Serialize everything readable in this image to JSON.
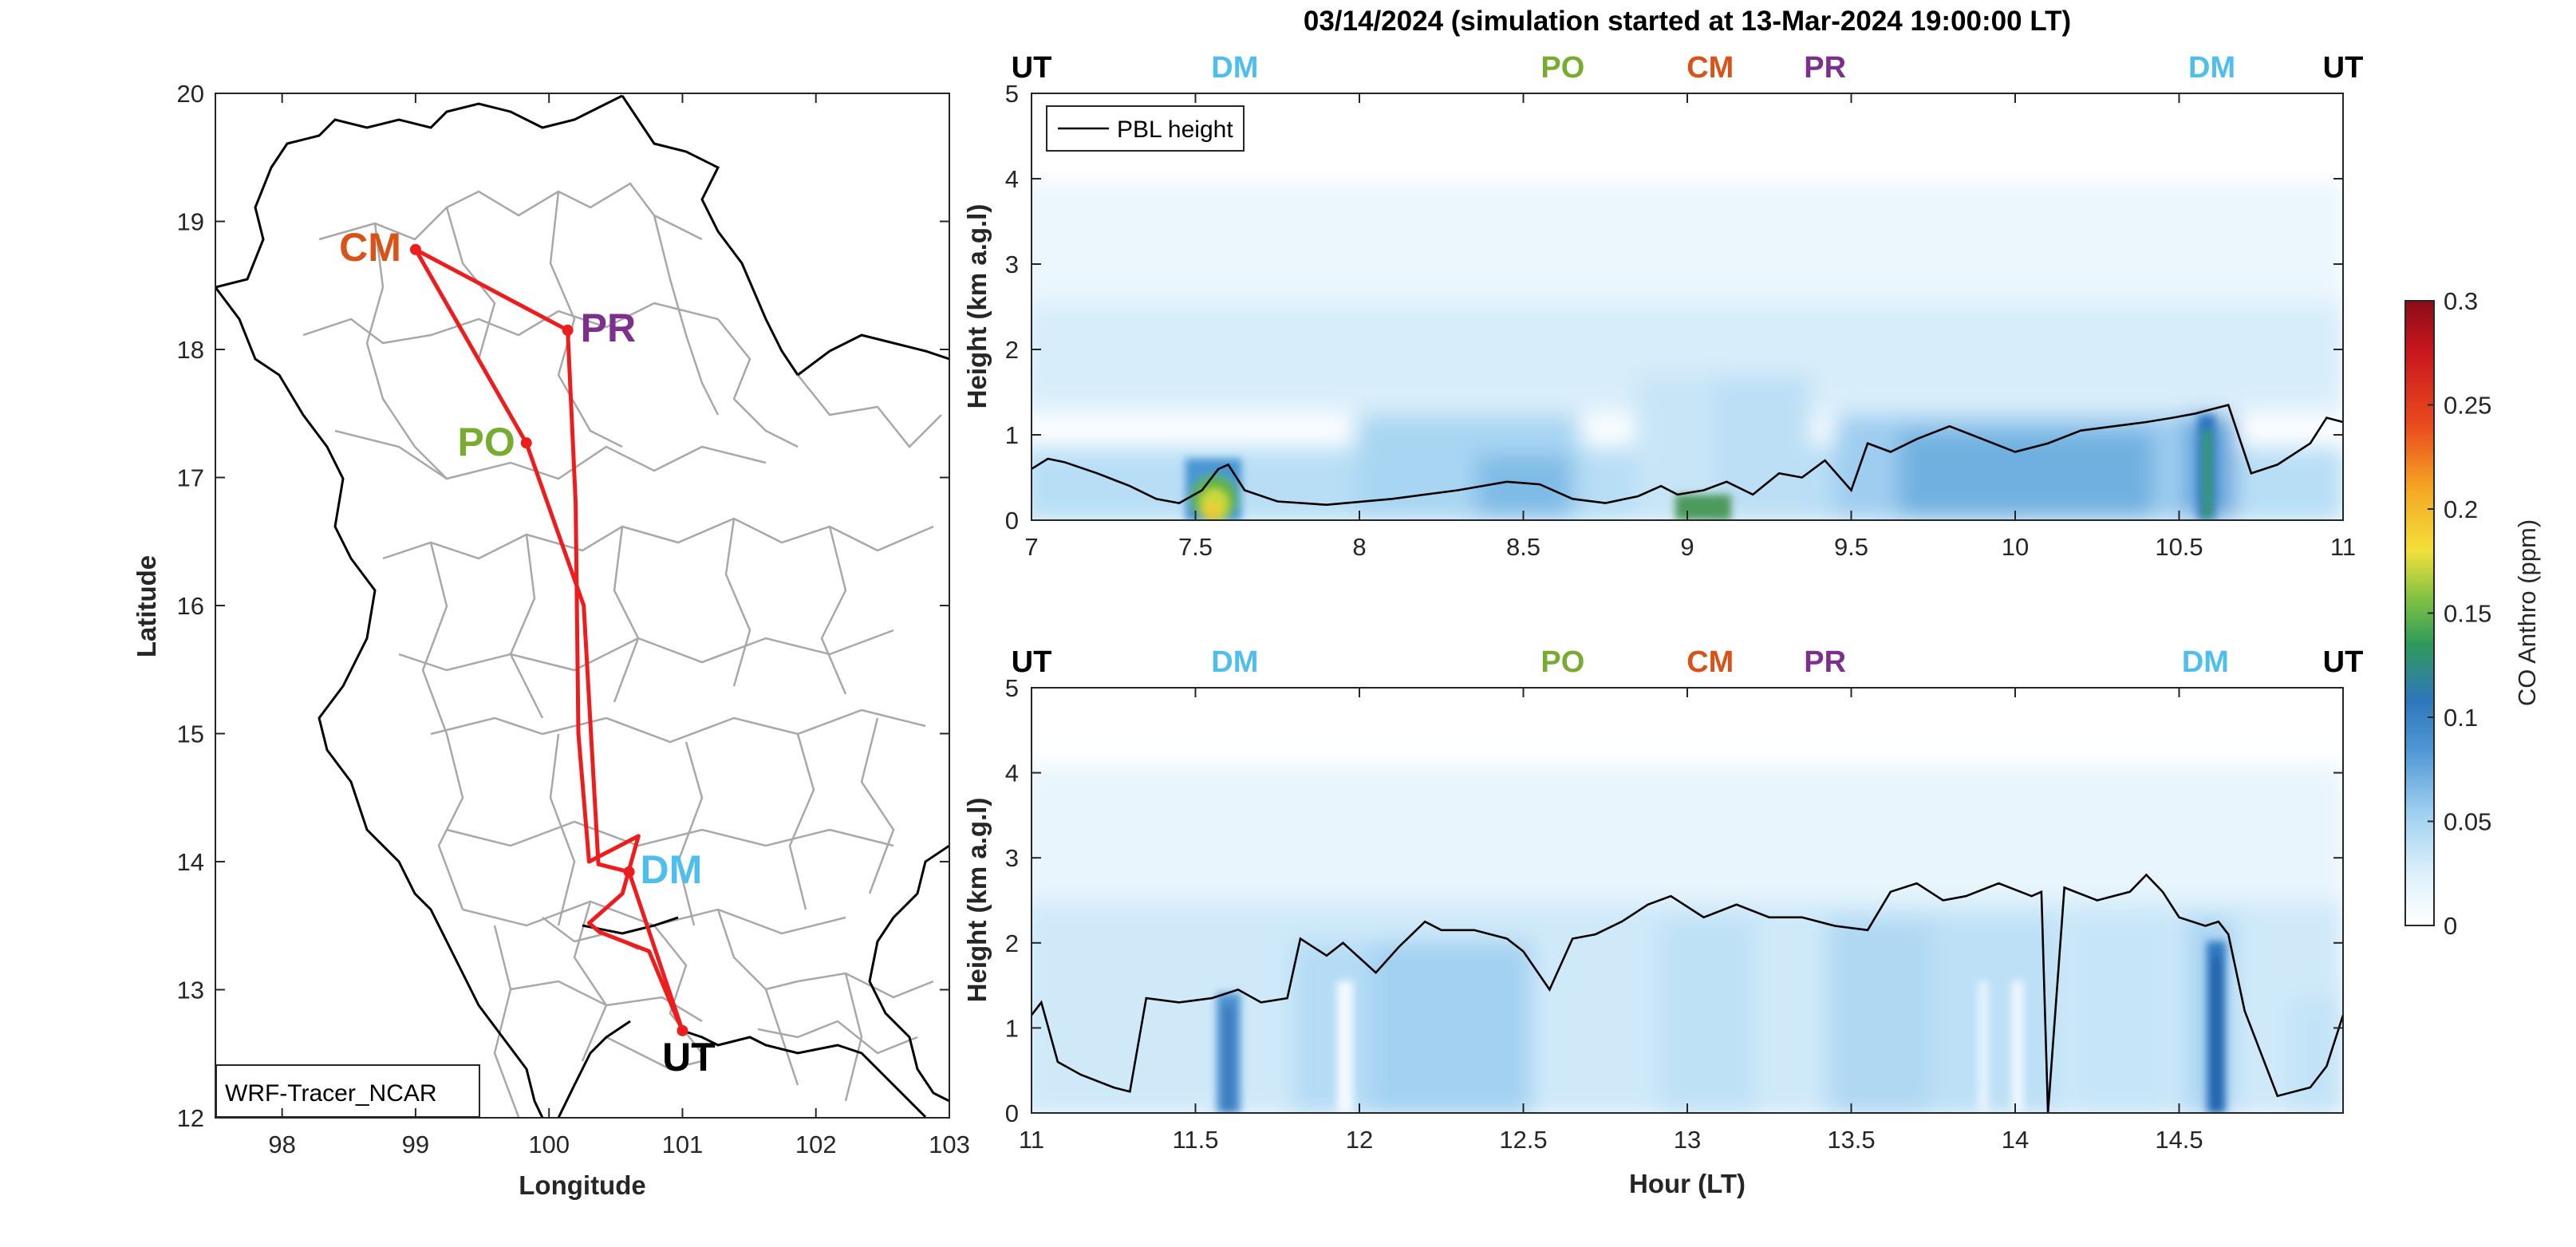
{
  "chart_data": [
    {
      "type": "map",
      "title": "",
      "xlabel": "Longitude",
      "ylabel": "Latitude",
      "xlim": [
        97.5,
        103
      ],
      "ylim": [
        12,
        20
      ],
      "xticks": [
        "98",
        "99",
        "100",
        "101",
        "102",
        "103"
      ],
      "yticks": [
        "12",
        "13",
        "14",
        "15",
        "16",
        "17",
        "18",
        "19",
        "20"
      ],
      "model_label": "WRF-Tracer_NCAR",
      "route_color": "#ee1c1c",
      "stations": [
        {
          "code": "CM",
          "lon": 99.0,
          "lat": 18.78,
          "color": "#d95319"
        },
        {
          "code": "PR",
          "lon": 100.14,
          "lat": 18.15,
          "color": "#7e2f8e"
        },
        {
          "code": "PO",
          "lon": 99.83,
          "lat": 17.27,
          "color": "#77ac30"
        },
        {
          "code": "DM",
          "lon": 100.6,
          "lat": 13.92,
          "color": "#4dbeee"
        },
        {
          "code": "UT",
          "lon": 101.0,
          "lat": 12.68,
          "color": "#000000"
        }
      ],
      "route": [
        [
          101.0,
          12.68
        ],
        [
          100.6,
          13.92
        ],
        [
          100.37,
          13.98
        ],
        [
          100.26,
          16.0
        ],
        [
          99.83,
          17.27
        ],
        [
          99.0,
          18.78
        ],
        [
          100.14,
          18.15
        ],
        [
          100.2,
          16.8
        ],
        [
          100.22,
          15.0
        ],
        [
          100.3,
          14.0
        ],
        [
          100.67,
          14.2
        ],
        [
          100.55,
          13.75
        ],
        [
          100.3,
          13.52
        ],
        [
          100.38,
          13.45
        ],
        [
          100.75,
          13.3
        ],
        [
          100.95,
          12.8
        ],
        [
          101.0,
          12.68
        ]
      ]
    },
    {
      "type": "heatmap",
      "title": "03/14/2024 (simulation started at 13-Mar-2024 19:00:00 LT)",
      "xlabel": "",
      "ylabel": "Height (km a.g.l)",
      "xlim": [
        7,
        11
      ],
      "ylim": [
        0,
        5
      ],
      "xticks": [
        "7",
        "7.5",
        "8",
        "8.5",
        "9",
        "9.5",
        "10",
        "10.5",
        "11"
      ],
      "yticks": [
        "0",
        "1",
        "2",
        "3",
        "4",
        "5"
      ],
      "legend": "PBL height",
      "top_markers": [
        {
          "code": "UT",
          "x": 7.0,
          "color": "#000000"
        },
        {
          "code": "DM",
          "x": 7.62,
          "color": "#4dbeee"
        },
        {
          "code": "PO",
          "x": 8.62,
          "color": "#77ac30"
        },
        {
          "code": "CM",
          "x": 9.07,
          "color": "#d95319"
        },
        {
          "code": "PR",
          "x": 9.42,
          "color": "#7e2f8e"
        },
        {
          "code": "DM",
          "x": 10.6,
          "color": "#4dbeee"
        },
        {
          "code": "UT",
          "x": 11.0,
          "color": "#000000"
        }
      ],
      "pbl_height": {
        "x": [
          7.0,
          7.05,
          7.1,
          7.2,
          7.3,
          7.38,
          7.45,
          7.52,
          7.57,
          7.6,
          7.65,
          7.75,
          7.9,
          8.1,
          8.3,
          8.45,
          8.55,
          8.65,
          8.75,
          8.85,
          8.92,
          8.97,
          9.05,
          9.12,
          9.2,
          9.28,
          9.35,
          9.42,
          9.5,
          9.55,
          9.62,
          9.7,
          9.8,
          9.9,
          10.0,
          10.1,
          10.2,
          10.3,
          10.4,
          10.48,
          10.55,
          10.6,
          10.65,
          10.72,
          10.8,
          10.9,
          10.95,
          11.0
        ],
        "y": [
          0.6,
          0.72,
          0.68,
          0.55,
          0.4,
          0.25,
          0.2,
          0.35,
          0.6,
          0.65,
          0.35,
          0.22,
          0.18,
          0.25,
          0.35,
          0.45,
          0.42,
          0.25,
          0.2,
          0.28,
          0.4,
          0.3,
          0.35,
          0.45,
          0.3,
          0.55,
          0.5,
          0.7,
          0.35,
          0.9,
          0.8,
          0.95,
          1.1,
          0.95,
          0.8,
          0.9,
          1.05,
          1.1,
          1.15,
          1.2,
          1.25,
          1.3,
          1.35,
          0.55,
          0.65,
          0.9,
          1.2,
          1.15
        ]
      }
    },
    {
      "type": "heatmap",
      "title": "",
      "xlabel": "Hour (LT)",
      "ylabel": "Height (km a.g.l)",
      "xlim": [
        11,
        15
      ],
      "ylim": [
        0,
        5
      ],
      "xticks": [
        "11",
        "11.5",
        "12",
        "12.5",
        "13",
        "13.5",
        "14",
        "14.5"
      ],
      "yticks": [
        "0",
        "1",
        "2",
        "3",
        "4",
        "5"
      ],
      "top_markers": [
        {
          "code": "UT",
          "x": 11.0,
          "color": "#000000"
        },
        {
          "code": "DM",
          "x": 11.62,
          "color": "#4dbeee"
        },
        {
          "code": "PO",
          "x": 12.62,
          "color": "#77ac30"
        },
        {
          "code": "CM",
          "x": 13.07,
          "color": "#d95319"
        },
        {
          "code": "PR",
          "x": 13.42,
          "color": "#7e2f8e"
        },
        {
          "code": "DM",
          "x": 14.58,
          "color": "#4dbeee"
        },
        {
          "code": "UT",
          "x": 15.0,
          "color": "#000000"
        }
      ],
      "pbl_height": {
        "x": [
          11.0,
          11.03,
          11.08,
          11.15,
          11.25,
          11.3,
          11.35,
          11.45,
          11.55,
          11.63,
          11.7,
          11.78,
          11.82,
          11.9,
          11.95,
          12.05,
          12.12,
          12.2,
          12.25,
          12.35,
          12.45,
          12.5,
          12.58,
          12.65,
          12.72,
          12.8,
          12.88,
          12.95,
          13.05,
          13.15,
          13.25,
          13.35,
          13.45,
          13.55,
          13.62,
          13.7,
          13.78,
          13.85,
          13.95,
          14.05,
          14.08,
          14.1,
          14.15,
          14.25,
          14.35,
          14.4,
          14.45,
          14.5,
          14.58,
          14.62,
          14.65,
          14.7,
          14.8,
          14.9,
          14.95,
          15.0
        ],
        "y": [
          1.15,
          1.3,
          0.6,
          0.45,
          0.3,
          0.25,
          1.35,
          1.3,
          1.35,
          1.45,
          1.3,
          1.35,
          2.05,
          1.85,
          2.0,
          1.65,
          1.95,
          2.25,
          2.15,
          2.15,
          2.05,
          1.9,
          1.45,
          2.05,
          2.1,
          2.25,
          2.45,
          2.55,
          2.3,
          2.45,
          2.3,
          2.3,
          2.2,
          2.15,
          2.6,
          2.7,
          2.5,
          2.55,
          2.7,
          2.55,
          2.6,
          0.0,
          2.65,
          2.5,
          2.6,
          2.8,
          2.6,
          2.3,
          2.2,
          2.25,
          2.1,
          1.2,
          0.2,
          0.3,
          0.55,
          1.15
        ]
      }
    }
  ],
  "colorbar": {
    "label": "CO Anthro (ppm)",
    "min": 0,
    "max": 0.3,
    "ticks": [
      "0",
      "0.05",
      "0.1",
      "0.15",
      "0.2",
      "0.25",
      "0.3"
    ],
    "colors": [
      "#ffffff",
      "#c6e6f8",
      "#82c1ea",
      "#3c86c8",
      "#3da24c",
      "#a5d13c",
      "#f5dc3a",
      "#f39c1f",
      "#e3261e",
      "#9e0f1b"
    ]
  }
}
